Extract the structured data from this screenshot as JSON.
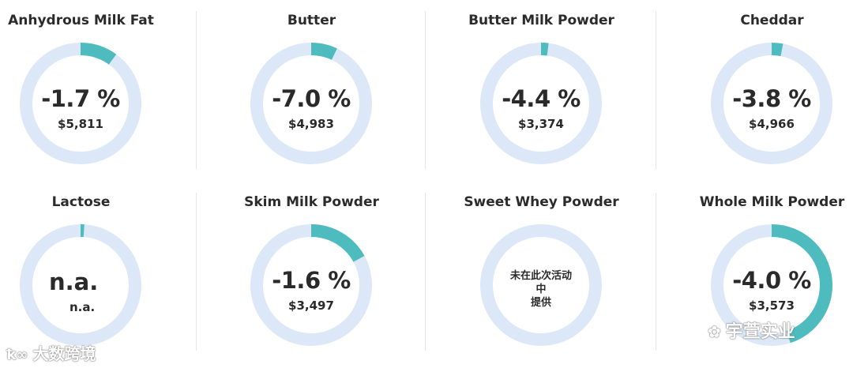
{
  "chart_data": {
    "type": "donut-grid",
    "items": [
      {
        "name": "Anhydrous Milk Fat",
        "change": "-1.7 %",
        "price": "$5,811",
        "fraction": 0.1
      },
      {
        "name": "Butter",
        "change": "-7.0 %",
        "price": "$4,983",
        "fraction": 0.07
      },
      {
        "name": "Butter Milk Powder",
        "change": "-4.4 %",
        "price": "$3,374",
        "fraction": 0.02
      },
      {
        "name": "Cheddar",
        "change": "-3.8 %",
        "price": "$4,966",
        "fraction": 0.03
      },
      {
        "name": "Lactose",
        "change": "n.a.",
        "price": "n.a.",
        "fraction": 0.01
      },
      {
        "name": "Skim Milk Powder",
        "change": "-1.6 %",
        "price": "$3,497",
        "fraction": 0.17
      },
      {
        "name": "Sweet Whey Powder",
        "change": "",
        "price": "",
        "fraction": 0,
        "notice_lines": [
          "未在此次活动",
          "中",
          "提供"
        ]
      },
      {
        "name": "Whole Milk Powder",
        "change": "-4.0 %",
        "price": "$3,573",
        "fraction": 0.45
      }
    ],
    "colors": {
      "track": "#dce8f7",
      "fill": "#4ebcbf"
    }
  },
  "watermarks": {
    "left": "大数跨境",
    "right": "宇萱实业"
  }
}
